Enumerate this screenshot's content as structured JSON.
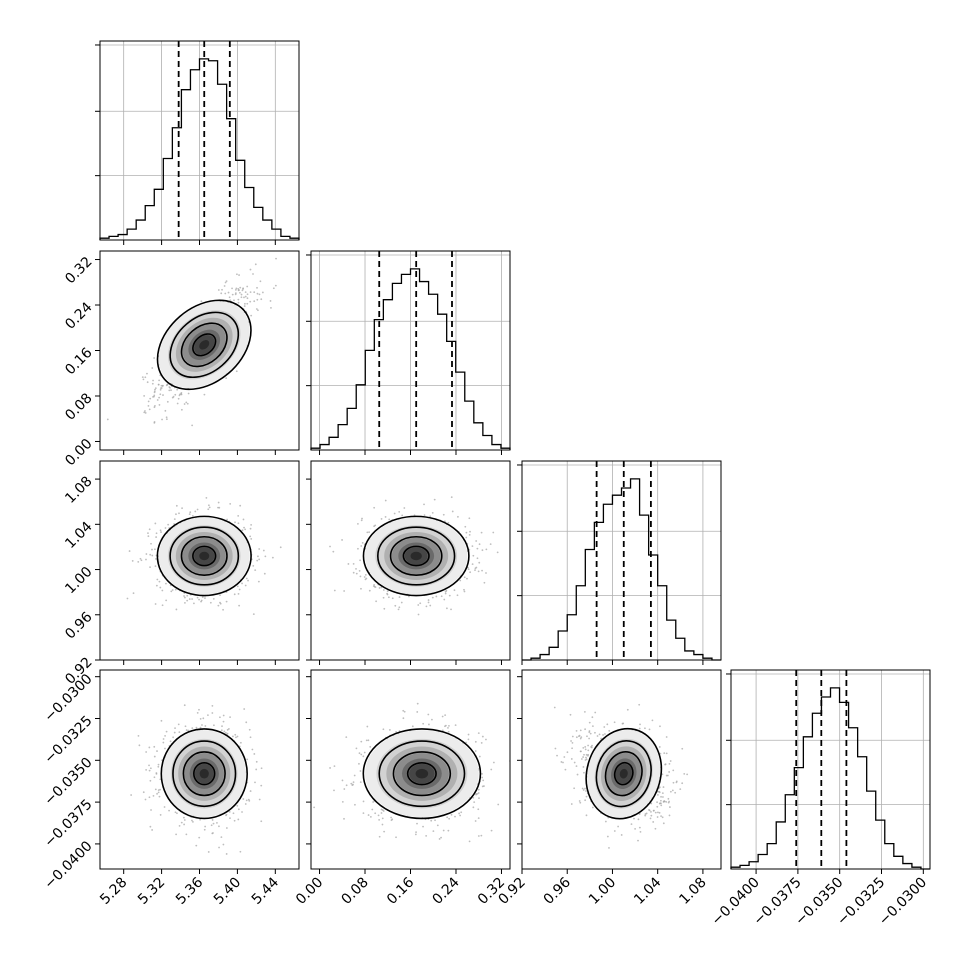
{
  "chart_data": {
    "type": "corner",
    "params": [
      {
        "index": 0,
        "range": [
          5.255,
          5.465
        ],
        "ticks": [
          "5.28",
          "5.32",
          "5.36",
          "5.40",
          "5.44"
        ],
        "quantiles": [
          5.338,
          5.365,
          5.392
        ]
      },
      {
        "index": 1,
        "range": [
          -0.015,
          0.335
        ],
        "ticks": [
          "0.00",
          "0.08",
          "0.16",
          "0.24",
          "0.32"
        ],
        "quantiles": [
          0.105,
          0.17,
          0.233
        ]
      },
      {
        "index": 2,
        "range": [
          0.92,
          1.096
        ],
        "ticks": [
          "0.92",
          "0.96",
          "1.00",
          "1.04",
          "1.08"
        ],
        "quantiles": [
          0.986,
          1.01,
          1.034
        ]
      },
      {
        "index": 3,
        "range": [
          -0.0415,
          -0.0296
        ],
        "ticks": [
          "−0.0400",
          "−0.0375",
          "−0.0350",
          "−0.0325",
          "−0.0300"
        ],
        "quantiles": [
          -0.0376,
          -0.0361,
          -0.0346
        ]
      }
    ],
    "histograms": [
      [
        0.01,
        0.02,
        0.03,
        0.06,
        0.11,
        0.19,
        0.28,
        0.45,
        0.62,
        0.83,
        0.94,
        1.0,
        0.99,
        0.86,
        0.67,
        0.44,
        0.29,
        0.18,
        0.11,
        0.06,
        0.02,
        0.01
      ],
      [
        0.01,
        0.03,
        0.07,
        0.14,
        0.23,
        0.36,
        0.55,
        0.72,
        0.83,
        0.92,
        0.97,
        1.0,
        0.93,
        0.86,
        0.75,
        0.6,
        0.43,
        0.27,
        0.15,
        0.08,
        0.03,
        0.01
      ],
      [
        0.0,
        0.01,
        0.03,
        0.07,
        0.16,
        0.25,
        0.41,
        0.61,
        0.76,
        0.86,
        0.91,
        0.95,
        1.0,
        0.8,
        0.58,
        0.41,
        0.22,
        0.12,
        0.05,
        0.03,
        0.01,
        0.0
      ],
      [
        0.01,
        0.02,
        0.04,
        0.08,
        0.14,
        0.26,
        0.41,
        0.56,
        0.73,
        0.86,
        0.95,
        1.0,
        0.92,
        0.78,
        0.62,
        0.43,
        0.27,
        0.14,
        0.07,
        0.03,
        0.01,
        0.0
      ]
    ],
    "pairs": [
      {
        "row": 1,
        "col": 0,
        "center": [
          5.365,
          0.17
        ],
        "sd": [
          0.024,
          0.046
        ],
        "corr": 0.75
      },
      {
        "row": 2,
        "col": 0,
        "center": [
          5.365,
          1.012
        ],
        "sd": [
          0.024,
          0.017
        ],
        "corr": 0.0
      },
      {
        "row": 2,
        "col": 1,
        "center": [
          0.17,
          1.012
        ],
        "sd": [
          0.045,
          0.017
        ],
        "corr": 0.0
      },
      {
        "row": 3,
        "col": 0,
        "center": [
          5.365,
          -0.0358
        ],
        "sd": [
          0.022,
          0.0013
        ],
        "corr": 0.0
      },
      {
        "row": 3,
        "col": 1,
        "center": [
          0.18,
          -0.0358
        ],
        "sd": [
          0.05,
          0.0013
        ],
        "corr": 0.0
      },
      {
        "row": 3,
        "col": 2,
        "center": [
          1.01,
          -0.0358
        ],
        "sd": [
          0.018,
          0.0013
        ],
        "corr": -0.25
      }
    ],
    "contour_levels": [
      0.5,
      1.0,
      1.5,
      2.0
    ],
    "grid": true,
    "xlabel": "",
    "ylabel": "",
    "title": ""
  },
  "colors": {
    "line": "#000000",
    "grid": "#b0b0b0",
    "points": "#a8a8a8",
    "density_dark": "#222222"
  }
}
